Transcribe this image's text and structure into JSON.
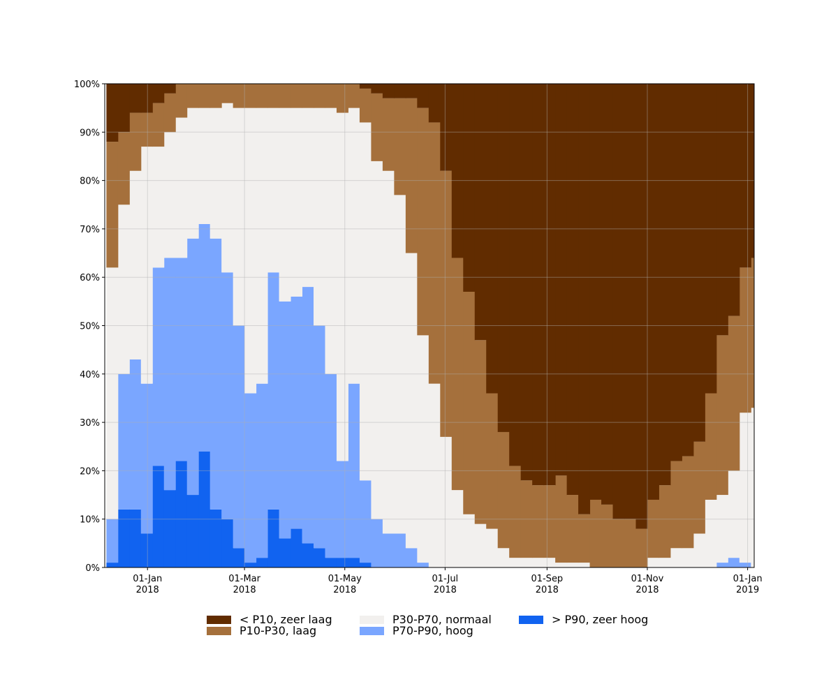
{
  "chart_data": {
    "type": "stacked_area",
    "x": [
      "2017-12-07",
      "2017-12-14",
      "2017-12-21",
      "2017-12-28",
      "2018-01-04",
      "2018-01-11",
      "2018-01-18",
      "2018-01-25",
      "2018-02-01",
      "2018-02-08",
      "2018-02-15",
      "2018-02-22",
      "2018-03-01",
      "2018-03-08",
      "2018-03-15",
      "2018-03-22",
      "2018-03-29",
      "2018-04-05",
      "2018-04-12",
      "2018-04-19",
      "2018-04-26",
      "2018-05-03",
      "2018-05-10",
      "2018-05-17",
      "2018-05-24",
      "2018-05-31",
      "2018-06-07",
      "2018-06-14",
      "2018-06-21",
      "2018-06-28",
      "2018-07-05",
      "2018-07-12",
      "2018-07-19",
      "2018-07-26",
      "2018-08-02",
      "2018-08-09",
      "2018-08-16",
      "2018-08-23",
      "2018-08-30",
      "2018-09-06",
      "2018-09-13",
      "2018-09-20",
      "2018-09-27",
      "2018-10-04",
      "2018-10-11",
      "2018-10-18",
      "2018-10-25",
      "2018-11-01",
      "2018-11-08",
      "2018-11-15",
      "2018-11-22",
      "2018-11-29",
      "2018-12-06",
      "2018-12-13",
      "2018-12-20",
      "2018-12-27",
      "2019-01-03"
    ],
    "series": [
      {
        "name": "< P10, zeer laag",
        "color": "#612c00",
        "values": [
          12,
          10,
          6,
          6,
          4,
          2,
          0,
          0,
          0,
          0,
          0,
          0,
          0,
          0,
          0,
          0,
          0,
          0,
          0,
          0,
          0,
          0,
          1,
          2,
          3,
          3,
          3,
          5,
          8,
          18,
          36,
          43,
          53,
          64,
          72,
          79,
          82,
          83,
          83,
          81,
          85,
          89,
          86,
          87,
          90,
          90,
          92,
          86,
          83,
          78,
          77,
          74,
          64,
          52,
          48,
          38,
          36
        ]
      },
      {
        "name": "P10-P30, laag",
        "color": "#a5703c",
        "values": [
          26,
          15,
          12,
          7,
          9,
          8,
          7,
          5,
          5,
          5,
          4,
          5,
          5,
          5,
          5,
          5,
          5,
          5,
          5,
          5,
          6,
          5,
          7,
          14,
          15,
          20,
          32,
          47,
          54,
          55,
          48,
          46,
          38,
          28,
          24,
          19,
          16,
          15,
          15,
          18,
          14,
          10,
          14,
          13,
          10,
          10,
          8,
          12,
          15,
          18,
          19,
          19,
          22,
          33,
          32,
          30,
          31
        ]
      },
      {
        "name": "P30-P70, normaal",
        "color": "#f2f0ee",
        "values": [
          52,
          35,
          39,
          49,
          25,
          26,
          29,
          27,
          24,
          27,
          35,
          45,
          59,
          57,
          34,
          40,
          39,
          37,
          45,
          55,
          72,
          57,
          74,
          74,
          75,
          70,
          61,
          47,
          38,
          27,
          16,
          11,
          9,
          8,
          4,
          2,
          2,
          2,
          2,
          1,
          1,
          1,
          0,
          0,
          0,
          0,
          0,
          2,
          2,
          4,
          4,
          7,
          14,
          14,
          18,
          31,
          33
        ]
      },
      {
        "name": "P70-P90, hoog",
        "color": "#7aa6ff",
        "values": [
          9,
          28,
          31,
          31,
          41,
          48,
          42,
          53,
          47,
          56,
          51,
          46,
          35,
          36,
          49,
          49,
          48,
          53,
          46,
          38,
          20,
          36,
          17,
          10,
          7,
          7,
          4,
          1,
          0,
          0,
          0,
          0,
          0,
          0,
          0,
          0,
          0,
          0,
          0,
          0,
          0,
          0,
          0,
          0,
          0,
          0,
          0,
          0,
          0,
          0,
          0,
          0,
          0,
          1,
          2,
          1,
          0
        ]
      },
      {
        "name": "> P90, zeer hoog",
        "color": "#1163f0",
        "values": [
          1,
          12,
          12,
          7,
          21,
          16,
          22,
          15,
          24,
          12,
          10,
          4,
          1,
          2,
          12,
          6,
          8,
          5,
          4,
          2,
          2,
          2,
          1,
          0,
          0,
          0,
          0,
          0,
          0,
          0,
          0,
          0,
          0,
          0,
          0,
          0,
          0,
          0,
          0,
          0,
          0,
          0,
          0,
          0,
          0,
          0,
          0,
          0,
          0,
          0,
          0,
          0,
          0,
          0,
          0,
          0,
          0
        ]
      }
    ],
    "xlim": [
      "2017-12-06",
      "2019-01-05"
    ],
    "xticks": [
      {
        "value": "2018-01-01",
        "label": "01-Jan\n2018"
      },
      {
        "value": "2018-03-01",
        "label": "01-Mar\n2018"
      },
      {
        "value": "2018-05-01",
        "label": "01-May\n2018"
      },
      {
        "value": "2018-07-01",
        "label": "01-Jul\n2018"
      },
      {
        "value": "2018-09-01",
        "label": "01-Sep\n2018"
      },
      {
        "value": "2018-11-01",
        "label": "01-Nov\n2018"
      },
      {
        "value": "2019-01-01",
        "label": "01-Jan\n2019"
      }
    ],
    "ylim": [
      0,
      100
    ],
    "yticks": [
      {
        "value": 0,
        "label": "0%"
      },
      {
        "value": 10,
        "label": "10%"
      },
      {
        "value": 20,
        "label": "20%"
      },
      {
        "value": 30,
        "label": "30%"
      },
      {
        "value": 40,
        "label": "40%"
      },
      {
        "value": 50,
        "label": "50%"
      },
      {
        "value": 60,
        "label": "60%"
      },
      {
        "value": 70,
        "label": "70%"
      },
      {
        "value": 80,
        "label": "80%"
      },
      {
        "value": 90,
        "label": "90%"
      },
      {
        "value": 100,
        "label": "100%"
      }
    ],
    "grid": true,
    "legend": "bottom"
  }
}
